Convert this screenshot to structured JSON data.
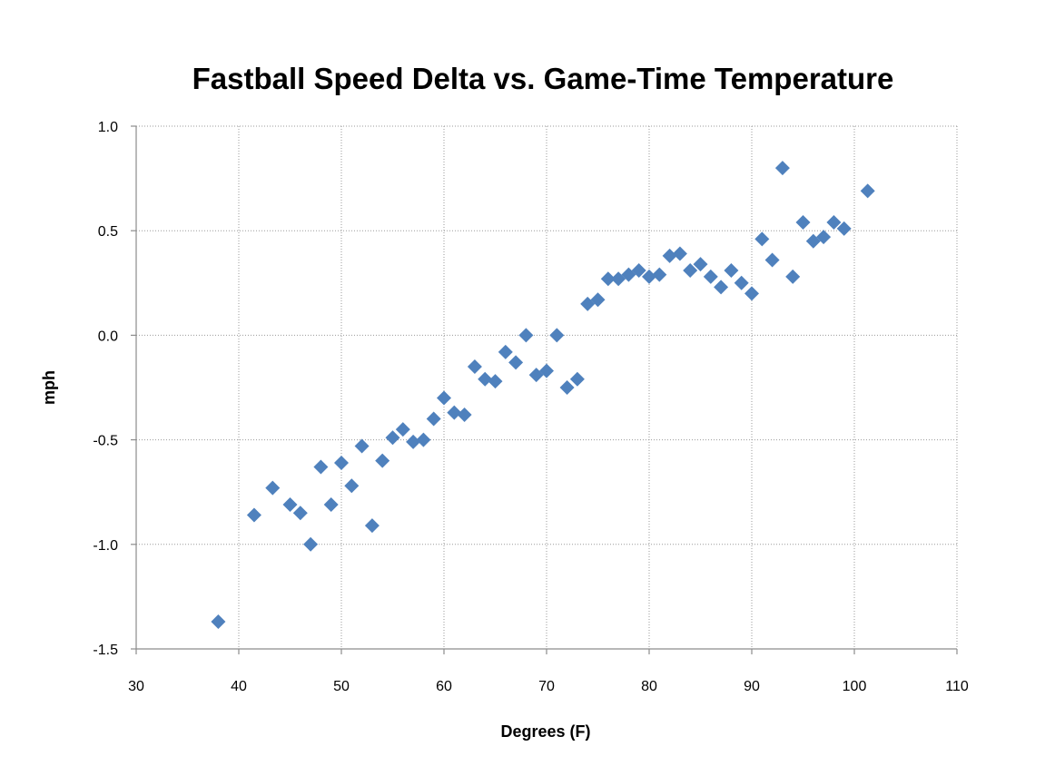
{
  "chart_data": {
    "type": "scatter",
    "title": "Fastball Speed Delta vs. Game-Time Temperature",
    "xlabel": "Degrees (F)",
    "ylabel": "mph",
    "xlim": [
      30,
      110
    ],
    "ylim": [
      -1.5,
      1.0
    ],
    "x_ticks": [
      "30",
      "40",
      "50",
      "60",
      "70",
      "80",
      "90",
      "100",
      "110"
    ],
    "y_ticks": [
      "1.0",
      "0.5",
      "0.0",
      "-0.5",
      "-1.0",
      "-1.5"
    ],
    "grid": true,
    "legend": "none",
    "marker": "diamond",
    "marker_color": "#4f81bd",
    "points": [
      {
        "x": 38,
        "y": -1.37
      },
      {
        "x": 41.5,
        "y": -0.86
      },
      {
        "x": 43.3,
        "y": -0.73
      },
      {
        "x": 45,
        "y": -0.81
      },
      {
        "x": 46,
        "y": -0.85
      },
      {
        "x": 47,
        "y": -1.0
      },
      {
        "x": 48,
        "y": -0.63
      },
      {
        "x": 49,
        "y": -0.81
      },
      {
        "x": 50,
        "y": -0.61
      },
      {
        "x": 51,
        "y": -0.72
      },
      {
        "x": 52,
        "y": -0.53
      },
      {
        "x": 53,
        "y": -0.91
      },
      {
        "x": 54,
        "y": -0.6
      },
      {
        "x": 55,
        "y": -0.49
      },
      {
        "x": 56,
        "y": -0.45
      },
      {
        "x": 57,
        "y": -0.51
      },
      {
        "x": 58,
        "y": -0.5
      },
      {
        "x": 59,
        "y": -0.4
      },
      {
        "x": 60,
        "y": -0.3
      },
      {
        "x": 61,
        "y": -0.37
      },
      {
        "x": 62,
        "y": -0.38
      },
      {
        "x": 63,
        "y": -0.15
      },
      {
        "x": 64,
        "y": -0.21
      },
      {
        "x": 65,
        "y": -0.22
      },
      {
        "x": 66,
        "y": -0.08
      },
      {
        "x": 67,
        "y": -0.13
      },
      {
        "x": 68,
        "y": 0.0
      },
      {
        "x": 69,
        "y": -0.19
      },
      {
        "x": 70,
        "y": -0.17
      },
      {
        "x": 71,
        "y": 0.0
      },
      {
        "x": 72,
        "y": -0.25
      },
      {
        "x": 73,
        "y": -0.21
      },
      {
        "x": 74,
        "y": 0.15
      },
      {
        "x": 75,
        "y": 0.17
      },
      {
        "x": 76,
        "y": 0.27
      },
      {
        "x": 77,
        "y": 0.27
      },
      {
        "x": 78,
        "y": 0.29
      },
      {
        "x": 79,
        "y": 0.31
      },
      {
        "x": 80,
        "y": 0.28
      },
      {
        "x": 81,
        "y": 0.29
      },
      {
        "x": 82,
        "y": 0.38
      },
      {
        "x": 83,
        "y": 0.39
      },
      {
        "x": 84,
        "y": 0.31
      },
      {
        "x": 85,
        "y": 0.34
      },
      {
        "x": 86,
        "y": 0.28
      },
      {
        "x": 87,
        "y": 0.23
      },
      {
        "x": 88,
        "y": 0.31
      },
      {
        "x": 89,
        "y": 0.25
      },
      {
        "x": 90,
        "y": 0.2
      },
      {
        "x": 91,
        "y": 0.46
      },
      {
        "x": 92,
        "y": 0.36
      },
      {
        "x": 93,
        "y": 0.8
      },
      {
        "x": 94,
        "y": 0.28
      },
      {
        "x": 95,
        "y": 0.54
      },
      {
        "x": 96,
        "y": 0.45
      },
      {
        "x": 97,
        "y": 0.47
      },
      {
        "x": 98,
        "y": 0.54
      },
      {
        "x": 99,
        "y": 0.51
      },
      {
        "x": 101.3,
        "y": 0.69
      }
    ]
  }
}
